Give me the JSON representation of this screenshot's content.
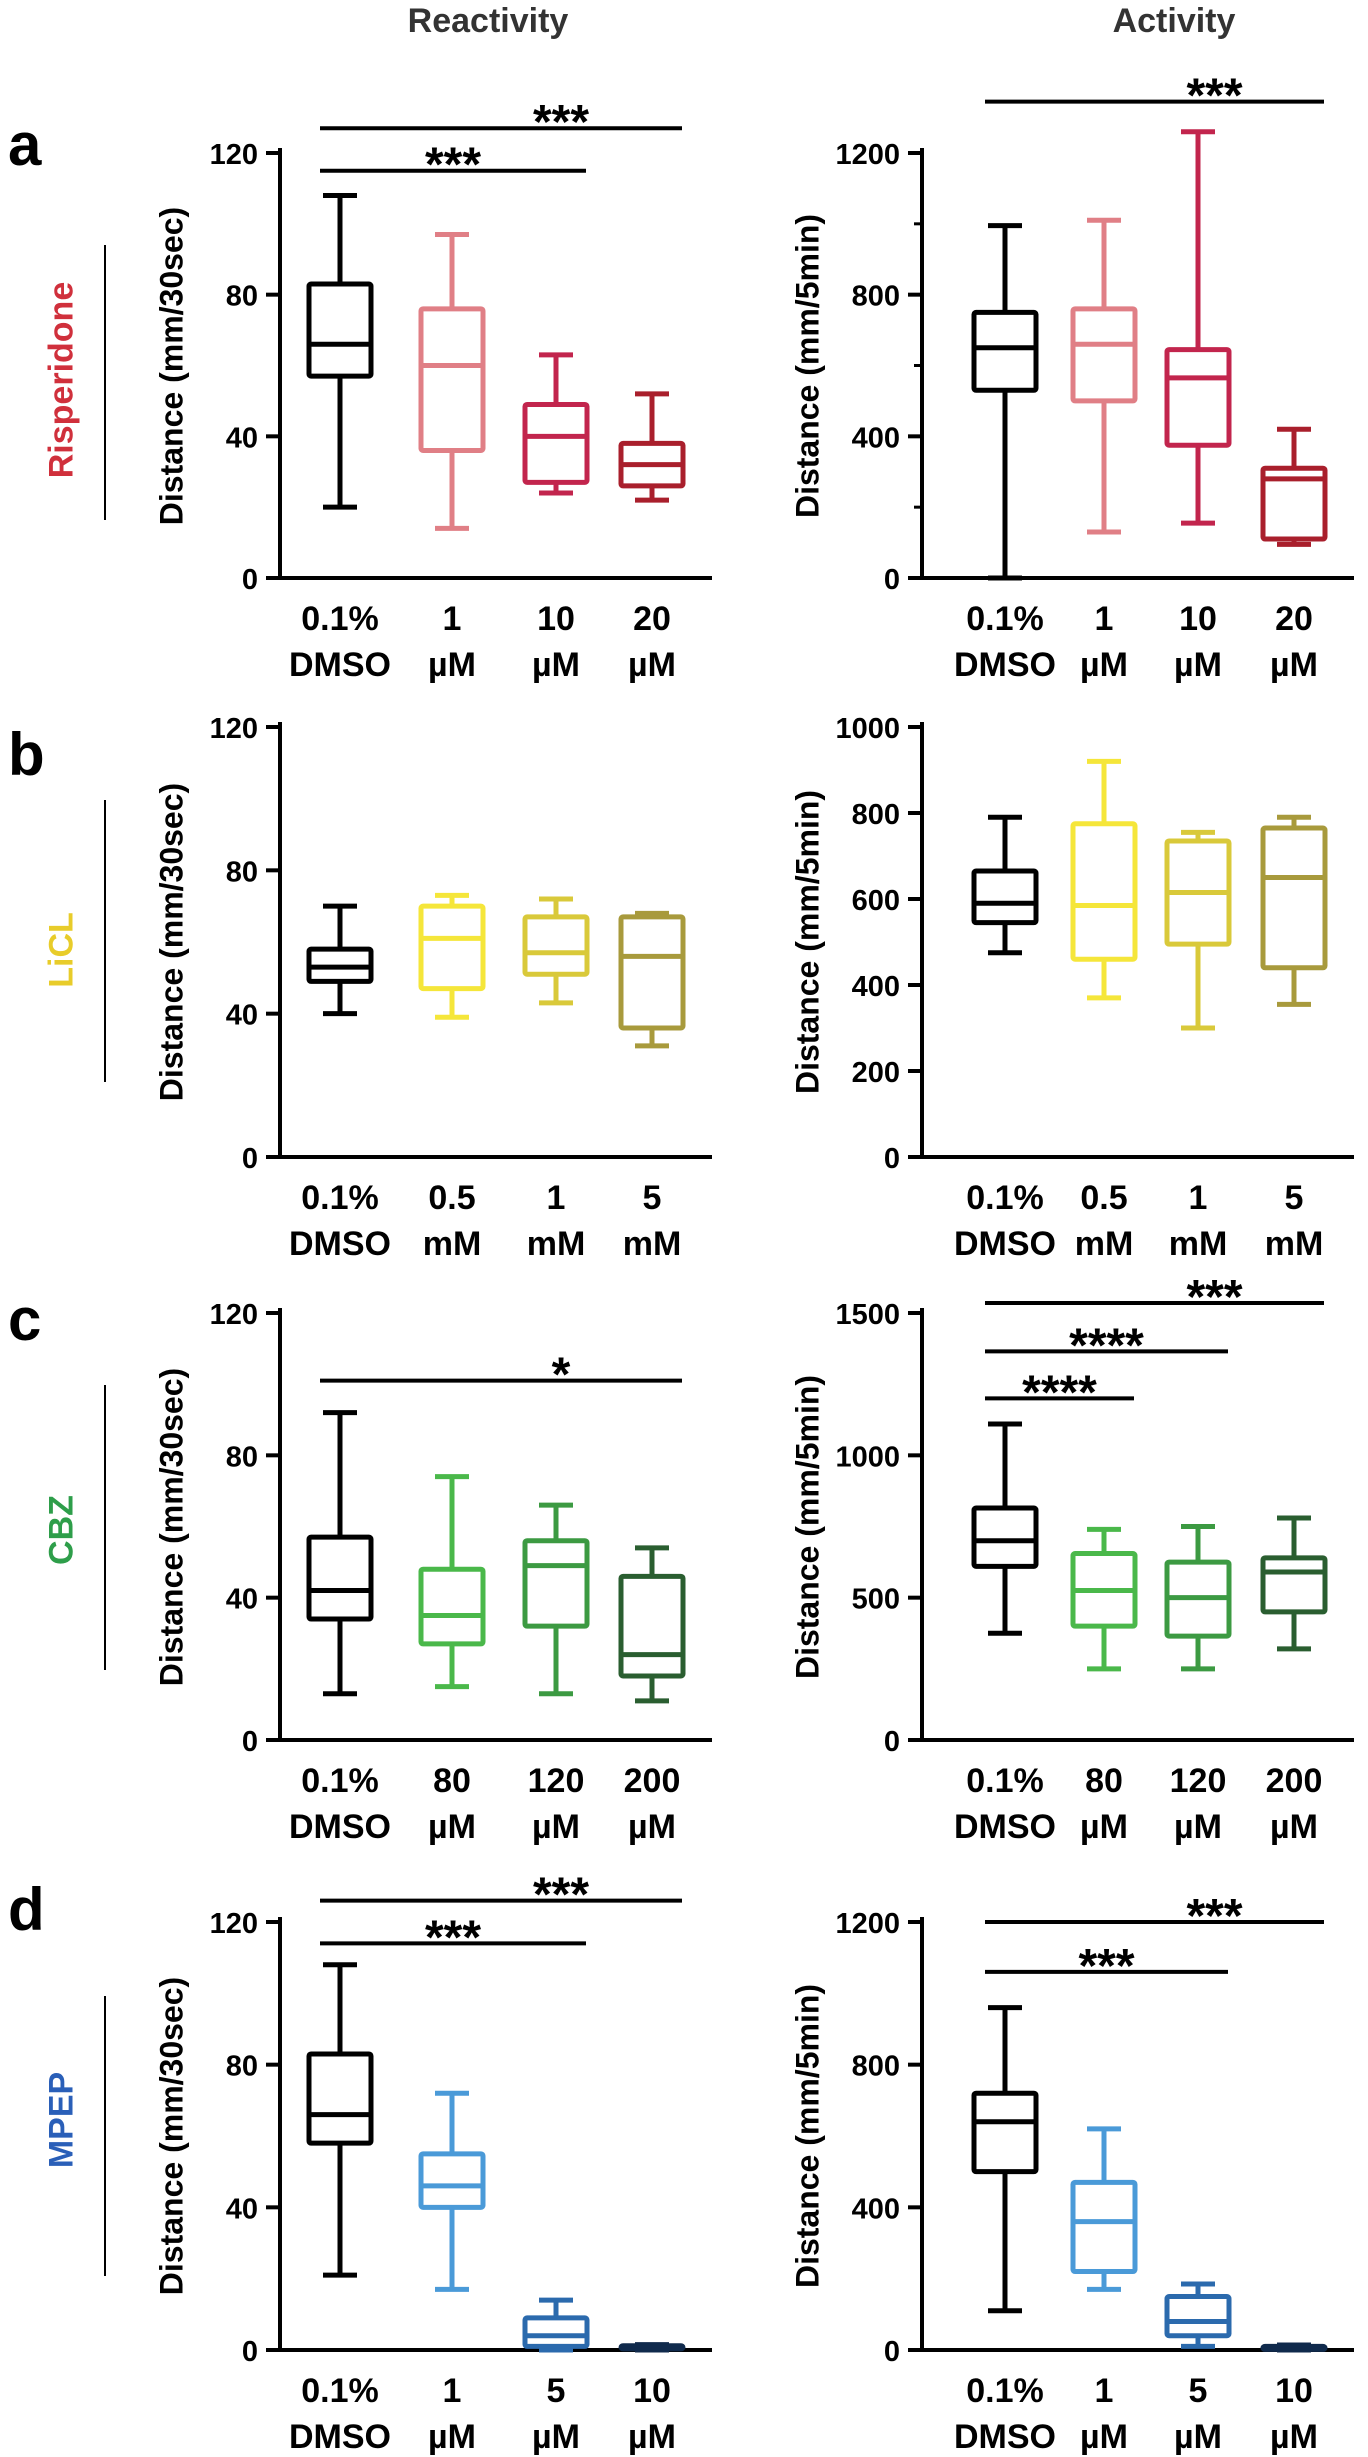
{
  "columns": [
    "Reactivity",
    "Activity"
  ],
  "rows": [
    {
      "letter": "a",
      "drug": "Risperidone",
      "color": "#d0303c"
    },
    {
      "letter": "b",
      "drug": "LiCL",
      "color": "#e8cc2a"
    },
    {
      "letter": "c",
      "drug": "CBZ",
      "color": "#2e9e4a"
    },
    {
      "letter": "d",
      "drug": "MPEP",
      "color": "#2a5fb8"
    }
  ],
  "chart_data": [
    {
      "type": "box",
      "panel": "a",
      "column": "Reactivity",
      "ylabel": "Distance (mm/30sec)",
      "ylim": [
        0,
        120
      ],
      "yticks": [
        0,
        40,
        80,
        120
      ],
      "categories": [
        [
          "0.1%",
          "DMSO"
        ],
        [
          "1",
          "µM"
        ],
        [
          "10",
          "µM"
        ],
        [
          "20",
          "µM"
        ]
      ],
      "colors": [
        "#000000",
        "#e07f86",
        "#c2254d",
        "#a91f2c"
      ],
      "boxes": [
        {
          "min": 20,
          "q1": 57,
          "median": 66,
          "q3": 83,
          "max": 108
        },
        {
          "min": 14,
          "q1": 36,
          "median": 60,
          "q3": 76,
          "max": 97
        },
        {
          "min": 24,
          "q1": 27,
          "median": 40,
          "q3": 49,
          "max": 63
        },
        {
          "min": 22,
          "q1": 26,
          "median": 32,
          "q3": 38,
          "max": 52
        }
      ],
      "significance": [
        {
          "from": 0,
          "to": 3,
          "label": "***",
          "y": 127
        },
        {
          "from": 0,
          "to": 2,
          "label": "***",
          "y": 115
        }
      ]
    },
    {
      "type": "box",
      "panel": "a",
      "column": "Activity",
      "ylabel": "Distance (mm/5min)",
      "ylim": [
        0,
        1200
      ],
      "yticks": [
        0,
        400,
        800,
        1200
      ],
      "minor_ticks": [
        200,
        600,
        1000
      ],
      "categories": [
        [
          "0.1%",
          "DMSO"
        ],
        [
          "1",
          "µM"
        ],
        [
          "10",
          "µM"
        ],
        [
          "20",
          "µM"
        ]
      ],
      "colors": [
        "#000000",
        "#e07f86",
        "#c2254d",
        "#a91f2c"
      ],
      "boxes": [
        {
          "min": 0,
          "q1": 530,
          "median": 650,
          "q3": 750,
          "max": 995
        },
        {
          "min": 130,
          "q1": 500,
          "median": 660,
          "q3": 760,
          "max": 1010
        },
        {
          "min": 155,
          "q1": 375,
          "median": 565,
          "q3": 645,
          "max": 1260
        },
        {
          "min": 95,
          "q1": 110,
          "median": 280,
          "q3": 310,
          "max": 420
        }
      ],
      "significance": [
        {
          "from": 0,
          "to": 3,
          "label": "***",
          "y": 1345
        }
      ]
    },
    {
      "type": "box",
      "panel": "b",
      "column": "Reactivity",
      "ylabel": "Distance (mm/30sec)",
      "ylim": [
        0,
        120
      ],
      "yticks": [
        0,
        40,
        80,
        120
      ],
      "categories": [
        [
          "0.1%",
          "DMSO"
        ],
        [
          "0.5",
          "mM"
        ],
        [
          "1",
          "mM"
        ],
        [
          "5",
          "mM"
        ]
      ],
      "colors": [
        "#000000",
        "#f5e63a",
        "#d9c93a",
        "#a89a3c"
      ],
      "boxes": [
        {
          "min": 40,
          "q1": 49,
          "median": 53,
          "q3": 58,
          "max": 70
        },
        {
          "min": 39,
          "q1": 47,
          "median": 61,
          "q3": 70,
          "max": 73
        },
        {
          "min": 43,
          "q1": 51,
          "median": 57,
          "q3": 67,
          "max": 72
        },
        {
          "min": 31,
          "q1": 36,
          "median": 56,
          "q3": 67,
          "max": 68
        }
      ],
      "significance": []
    },
    {
      "type": "box",
      "panel": "b",
      "column": "Activity",
      "ylabel": "Distance (mm/5min)",
      "ylim": [
        0,
        1000
      ],
      "yticks": [
        0,
        200,
        400,
        600,
        800,
        1000
      ],
      "categories": [
        [
          "0.1%",
          "DMSO"
        ],
        [
          "0.5",
          "mM"
        ],
        [
          "1",
          "mM"
        ],
        [
          "5",
          "mM"
        ]
      ],
      "colors": [
        "#000000",
        "#f5e63a",
        "#d9c93a",
        "#a89a3c"
      ],
      "boxes": [
        {
          "min": 475,
          "q1": 545,
          "median": 590,
          "q3": 665,
          "max": 790
        },
        {
          "min": 370,
          "q1": 460,
          "median": 585,
          "q3": 775,
          "max": 920
        },
        {
          "min": 300,
          "q1": 495,
          "median": 615,
          "q3": 735,
          "max": 755
        },
        {
          "min": 355,
          "q1": 440,
          "median": 650,
          "q3": 765,
          "max": 790
        }
      ],
      "significance": []
    },
    {
      "type": "box",
      "panel": "c",
      "column": "Reactivity",
      "ylabel": "Distance (mm/30sec)",
      "ylim": [
        0,
        120
      ],
      "yticks": [
        0,
        40,
        80,
        120
      ],
      "categories": [
        [
          "0.1%",
          "DMSO"
        ],
        [
          "80",
          "µM"
        ],
        [
          "120",
          "µM"
        ],
        [
          "200",
          "µM"
        ]
      ],
      "colors": [
        "#000000",
        "#4ab84a",
        "#3c9a42",
        "#2a5e30"
      ],
      "boxes": [
        {
          "min": 13,
          "q1": 34,
          "median": 42,
          "q3": 57,
          "max": 92
        },
        {
          "min": 15,
          "q1": 27,
          "median": 35,
          "q3": 48,
          "max": 74
        },
        {
          "min": 13,
          "q1": 32,
          "median": 49,
          "q3": 56,
          "max": 66
        },
        {
          "min": 11,
          "q1": 18,
          "median": 24,
          "q3": 46,
          "max": 54
        }
      ],
      "significance": [
        {
          "from": 0,
          "to": 3,
          "label": "*",
          "y": 101
        }
      ]
    },
    {
      "type": "box",
      "panel": "c",
      "column": "Activity",
      "ylabel": "Distance (mm/5min)",
      "ylim": [
        0,
        1500
      ],
      "yticks": [
        0,
        500,
        1000,
        1500
      ],
      "categories": [
        [
          "0.1%",
          "DMSO"
        ],
        [
          "80",
          "µM"
        ],
        [
          "120",
          "µM"
        ],
        [
          "200",
          "µM"
        ]
      ],
      "colors": [
        "#000000",
        "#4ab84a",
        "#3c9a42",
        "#2a5e30"
      ],
      "boxes": [
        {
          "min": 375,
          "q1": 610,
          "median": 700,
          "q3": 815,
          "max": 1110
        },
        {
          "min": 250,
          "q1": 400,
          "median": 525,
          "q3": 655,
          "max": 740
        },
        {
          "min": 250,
          "q1": 365,
          "median": 500,
          "q3": 625,
          "max": 750
        },
        {
          "min": 320,
          "q1": 450,
          "median": 590,
          "q3": 640,
          "max": 780
        }
      ],
      "significance": [
        {
          "from": 0,
          "to": 3,
          "label": "***",
          "y": 1535
        },
        {
          "from": 0,
          "to": 2,
          "label": "****",
          "y": 1365
        },
        {
          "from": 0,
          "to": 1,
          "label": "****",
          "y": 1200
        }
      ]
    },
    {
      "type": "box",
      "panel": "d",
      "column": "Reactivity",
      "ylabel": "Distance (mm/30sec)",
      "ylim": [
        0,
        120
      ],
      "yticks": [
        0,
        40,
        80,
        120
      ],
      "categories": [
        [
          "0.1%",
          "DMSO"
        ],
        [
          "1",
          "µM"
        ],
        [
          "5",
          "µM"
        ],
        [
          "10",
          "µM"
        ]
      ],
      "colors": [
        "#000000",
        "#4a9ad8",
        "#2b6aad",
        "#102a4c"
      ],
      "boxes": [
        {
          "min": 21,
          "q1": 58,
          "median": 66,
          "q3": 83,
          "max": 108
        },
        {
          "min": 17,
          "q1": 40,
          "median": 46,
          "q3": 55,
          "max": 72
        },
        {
          "min": 0,
          "q1": 1,
          "median": 4,
          "q3": 9,
          "max": 14
        },
        {
          "min": 0,
          "q1": 0.3,
          "median": 0.7,
          "q3": 1.2,
          "max": 1.5
        }
      ],
      "significance": [
        {
          "from": 0,
          "to": 3,
          "label": "***",
          "y": 126
        },
        {
          "from": 0,
          "to": 2,
          "label": "***",
          "y": 114
        }
      ]
    },
    {
      "type": "box",
      "panel": "d",
      "column": "Activity",
      "ylabel": "Distance (mm/5min)",
      "ylim": [
        0,
        1200
      ],
      "yticks": [
        0,
        400,
        800,
        1200
      ],
      "categories": [
        [
          "0.1%",
          "DMSO"
        ],
        [
          "1",
          "µM"
        ],
        [
          "5",
          "µM"
        ],
        [
          "10",
          "µM"
        ]
      ],
      "colors": [
        "#000000",
        "#4a9ad8",
        "#2b6aad",
        "#102a4c"
      ],
      "boxes": [
        {
          "min": 110,
          "q1": 500,
          "median": 640,
          "q3": 720,
          "max": 960
        },
        {
          "min": 170,
          "q1": 220,
          "median": 360,
          "q3": 470,
          "max": 620
        },
        {
          "min": 10,
          "q1": 40,
          "median": 80,
          "q3": 150,
          "max": 185
        },
        {
          "min": 0,
          "q1": 2,
          "median": 6,
          "q3": 10,
          "max": 14
        }
      ],
      "significance": [
        {
          "from": 0,
          "to": 3,
          "label": "***",
          "y": 1200
        },
        {
          "from": 0,
          "to": 2,
          "label": "***",
          "y": 1060
        }
      ]
    }
  ]
}
